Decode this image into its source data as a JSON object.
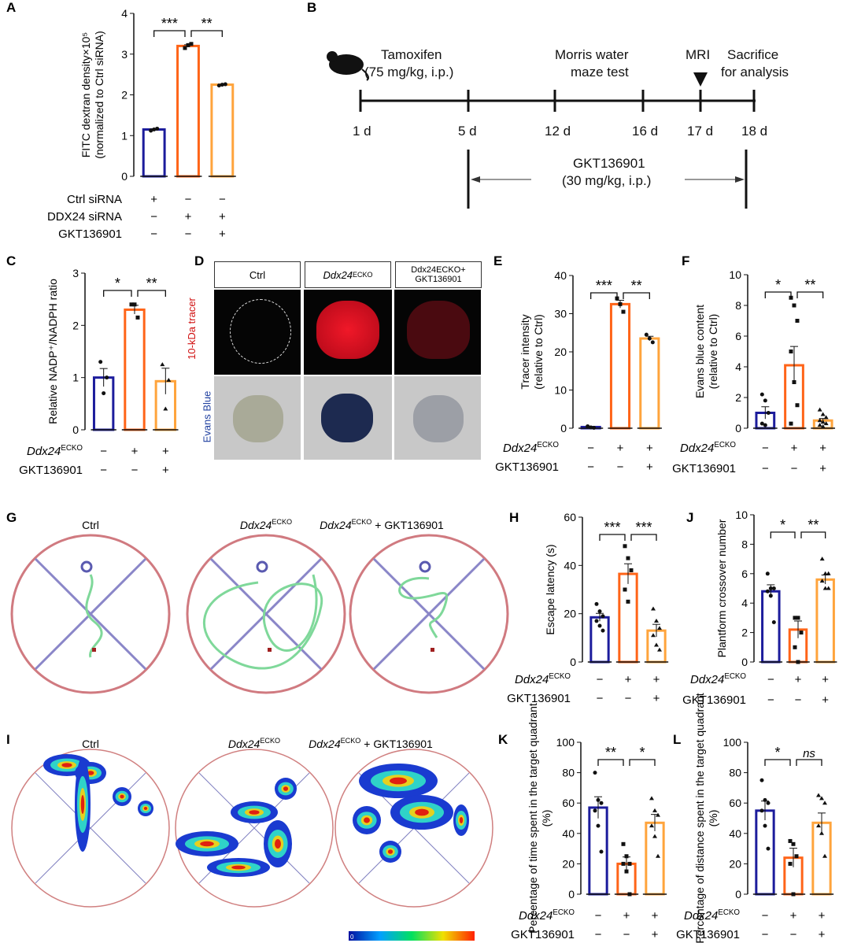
{
  "panels": {
    "A": "A",
    "B": "B",
    "C": "C",
    "D": "D",
    "E": "E",
    "F": "F",
    "G": "G",
    "H": "H",
    "I": "I",
    "J": "J",
    "K": "K",
    "L": "L"
  },
  "colors": {
    "ctrl": "#1c1c9c",
    "ecko": "#ff6418",
    "gkt": "#ffa43c"
  },
  "geno": {
    "base": "Ddx24",
    "sup": "ECKO"
  },
  "timeline": {
    "tamoxifen": "Tamoxifen",
    "tamoxifen_dose": "(75 mg/kg, i.p.)",
    "morris1": "Morris water",
    "morris2": "maze test",
    "mri": "MRI",
    "sac1": "Sacrifice",
    "sac2": "for analysis",
    "days": [
      "1 d",
      "5 d",
      "12 d",
      "16 d",
      "17 d",
      "18 d"
    ],
    "gkt": "GKT136901",
    "gkt_dose": "(30 mg/kg, i.p.)"
  },
  "panel_d": {
    "cols": [
      "Ctrl",
      "Ddx24ECKO",
      "Ddx24ECKO+ GKT136901"
    ],
    "row1": "10-kDa tracer",
    "row2": "Evans Blue"
  },
  "panel_g": {
    "titles": [
      "Ctrl",
      "Ddx24ECKO",
      "Ddx24ECKO + GKT136901"
    ]
  },
  "panel_i": {
    "titles": [
      "Ctrl",
      "Ddx24ECKO",
      "Ddx24ECKO + GKT136901"
    ],
    "colorbar_min": "0"
  },
  "chart_data": [
    {
      "id": "A",
      "type": "bar",
      "ylabel": "FITC dextran density×10⁵ (normalized to Ctrl siRNA)",
      "ylim": [
        0,
        4
      ],
      "ticks": [
        0,
        1,
        2,
        3,
        4
      ],
      "values": [
        1.15,
        3.2,
        2.25
      ],
      "points": [
        [
          1.12,
          1.15,
          1.17
        ],
        [
          3.15,
          3.22,
          3.25
        ],
        [
          2.23,
          2.25,
          2.26
        ]
      ],
      "sig": [
        "***",
        "**"
      ],
      "rows": [
        {
          "label": "Ctrl siRNA",
          "signs": [
            "+",
            "−",
            "−"
          ]
        },
        {
          "label": "DDX24 siRNA",
          "signs": [
            "−",
            "+",
            "+"
          ]
        },
        {
          "label": "GKT136901",
          "signs": [
            "−",
            "−",
            "+"
          ]
        }
      ]
    },
    {
      "id": "C",
      "type": "bar",
      "ylabel": "Relative NADP⁺/NADPH ratio",
      "ylim": [
        0,
        3
      ],
      "ticks": [
        0,
        1,
        2,
        3
      ],
      "values": [
        1.0,
        2.3,
        0.93
      ],
      "points": [
        [
          1.3,
          0.7,
          1.0
        ],
        [
          2.4,
          2.4,
          2.15
        ],
        [
          1.25,
          0.4,
          0.95
        ]
      ],
      "sig": [
        "*",
        "**"
      ],
      "rows": [
        {
          "label": "Ddx24ECKO",
          "signs": [
            "−",
            "+",
            "+"
          ]
        },
        {
          "label": "GKT136901",
          "signs": [
            "−",
            "−",
            "+"
          ]
        }
      ]
    },
    {
      "id": "E",
      "type": "bar",
      "ylabel": "Tracer intensity (relative to Ctrl)",
      "ylim": [
        0,
        40
      ],
      "ticks": [
        0,
        10,
        20,
        30,
        40
      ],
      "values": [
        0.3,
        32.5,
        23.5
      ],
      "points": [
        [
          0.5,
          0.2,
          0.1
        ],
        [
          34,
          32.5,
          30.5
        ],
        [
          24.5,
          23.5,
          22.5
        ]
      ],
      "sig": [
        "***",
        "**"
      ],
      "rows": [
        {
          "label": "Ddx24ECKO",
          "signs": [
            "−",
            "+",
            "+"
          ]
        },
        {
          "label": "GKT136901",
          "signs": [
            "−",
            "−",
            "+"
          ]
        }
      ]
    },
    {
      "id": "F",
      "type": "bar",
      "ylabel": "Evans blue content (relative to Ctrl)",
      "ylim": [
        0,
        10
      ],
      "ticks": [
        0,
        2,
        4,
        6,
        8,
        10
      ],
      "values": [
        1.0,
        4.1,
        0.5
      ],
      "points": [
        [
          2.2,
          1.8,
          1.0,
          0.3,
          0.2
        ],
        [
          8.5,
          8.0,
          7.0,
          5.0,
          3.0,
          1.5,
          0.3
        ],
        [
          1.2,
          0.9,
          0.7,
          0.5,
          0.4,
          0.3,
          0.2,
          0.1
        ]
      ],
      "sig": [
        "*",
        "**"
      ],
      "rows": [
        {
          "label": "Ddx24ECKO",
          "signs": [
            "−",
            "+",
            "+"
          ]
        },
        {
          "label": "GKT136901",
          "signs": [
            "−",
            "−",
            "+"
          ]
        }
      ]
    },
    {
      "id": "H",
      "type": "bar",
      "ylabel": "Escape latency (s)",
      "ylim": [
        0,
        60
      ],
      "ticks": [
        0,
        20,
        40,
        60
      ],
      "values": [
        18.5,
        36.5,
        13
      ],
      "points": [
        [
          24,
          21,
          19,
          17,
          15,
          13
        ],
        [
          48,
          43,
          38,
          30,
          25
        ],
        [
          22,
          17,
          14,
          11,
          7,
          5
        ]
      ],
      "sig": [
        "***",
        "***"
      ],
      "rows": [
        {
          "label": "Ddx24ECKO",
          "signs": [
            "−",
            "+",
            "+"
          ]
        },
        {
          "label": "GKT136901",
          "signs": [
            "−",
            "−",
            "+"
          ]
        }
      ]
    },
    {
      "id": "J",
      "type": "bar",
      "ylabel": "Plantform crossover number",
      "ylim": [
        0,
        10
      ],
      "ticks": [
        0,
        2,
        4,
        6,
        8,
        10
      ],
      "values": [
        4.8,
        2.2,
        5.6
      ],
      "points": [
        [
          6,
          5,
          5,
          4.8,
          4.5,
          2.7
        ],
        [
          3,
          3,
          2,
          1,
          0
        ],
        [
          7,
          6,
          6,
          5.5,
          5,
          5
        ]
      ],
      "sig": [
        "*",
        "**"
      ],
      "rows": [
        {
          "label": "Ddx24ECKO",
          "signs": [
            "−",
            "+",
            "+"
          ]
        },
        {
          "label": "GKT136901",
          "signs": [
            "−",
            "−",
            "+"
          ]
        }
      ]
    },
    {
      "id": "K",
      "type": "bar",
      "ylabel": "Percentage of time spent in the target quadrant (%)",
      "ylim": [
        0,
        100
      ],
      "ticks": [
        0,
        20,
        40,
        60,
        80,
        100
      ],
      "values": [
        57,
        20,
        47
      ],
      "points": [
        [
          80,
          62,
          60,
          55,
          45,
          28
        ],
        [
          33,
          25,
          20,
          20,
          15,
          0
        ],
        [
          63,
          55,
          52,
          45,
          38,
          25
        ]
      ],
      "sig": [
        "**",
        "*"
      ],
      "rows": [
        {
          "label": "Ddx24ECKO",
          "signs": [
            "−",
            "+",
            "+"
          ]
        },
        {
          "label": "GKT136901",
          "signs": [
            "−",
            "−",
            "+"
          ]
        }
      ]
    },
    {
      "id": "L",
      "type": "bar",
      "ylabel": "Percentage of distance spent in the target quadrant (%)",
      "ylim": [
        0,
        100
      ],
      "ticks": [
        0,
        20,
        40,
        60,
        80,
        100
      ],
      "values": [
        55,
        24,
        47
      ],
      "points": [
        [
          75,
          62,
          60,
          55,
          45,
          30
        ],
        [
          35,
          33,
          25,
          20,
          0
        ],
        [
          65,
          63,
          60,
          45,
          40,
          25
        ]
      ],
      "sig": [
        "*",
        "ns"
      ],
      "rows": [
        {
          "label": "Ddx24ECKO",
          "signs": [
            "−",
            "+",
            "+"
          ]
        },
        {
          "label": "GKT136901",
          "signs": [
            "−",
            "−",
            "+"
          ]
        }
      ]
    }
  ]
}
